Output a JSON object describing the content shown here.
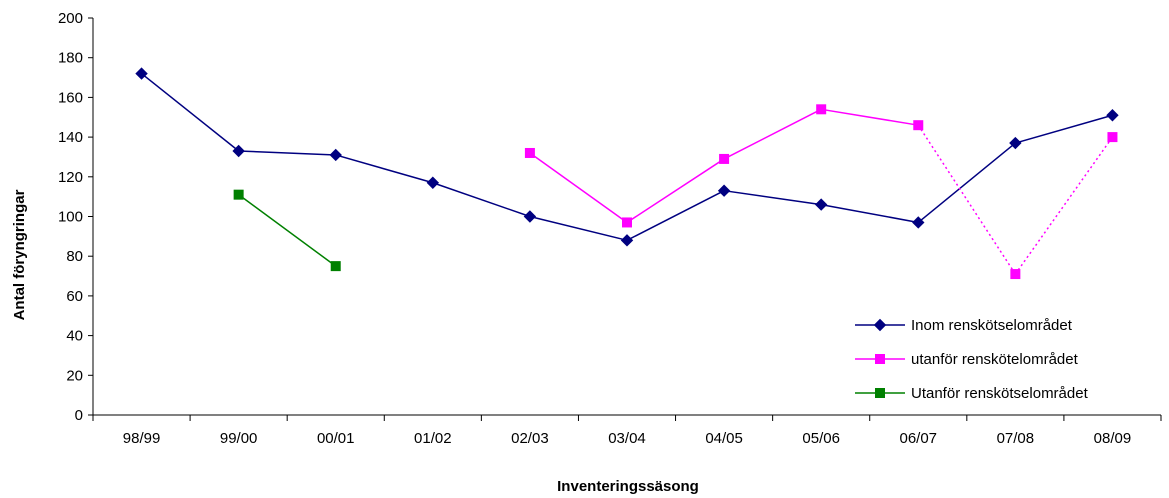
{
  "chart_data": {
    "type": "line",
    "title": "",
    "xlabel": "Inventeringssäsong",
    "ylabel": "Antal föryngringar",
    "ylim": [
      0,
      200
    ],
    "yticks": [
      0,
      20,
      40,
      60,
      80,
      100,
      120,
      140,
      160,
      180,
      200
    ],
    "categories": [
      "98/99",
      "99/00",
      "00/01",
      "01/02",
      "02/03",
      "03/04",
      "04/05",
      "05/06",
      "06/07",
      "07/08",
      "08/09"
    ],
    "grid": false,
    "legend_position": "bottom-right",
    "series": [
      {
        "name": "Inom renskötselområdet",
        "color": "#000080",
        "marker": "diamond",
        "values": [
          172,
          133,
          131,
          117,
          100,
          88,
          113,
          106,
          97,
          137,
          151
        ],
        "dashed_segments": []
      },
      {
        "name": "utanför renskötelområdet",
        "color": "#FF00FF",
        "marker": "square",
        "values": [
          null,
          null,
          null,
          null,
          132,
          97,
          129,
          154,
          146,
          71,
          140
        ],
        "dashed_segments": [
          [
            8,
            9
          ],
          [
            9,
            10
          ]
        ]
      },
      {
        "name": "Utanför renskötselområdet",
        "color": "#008000",
        "marker": "square",
        "values": [
          null,
          111,
          75,
          null,
          null,
          null,
          null,
          null,
          null,
          null,
          null
        ],
        "dashed_segments": []
      }
    ]
  }
}
